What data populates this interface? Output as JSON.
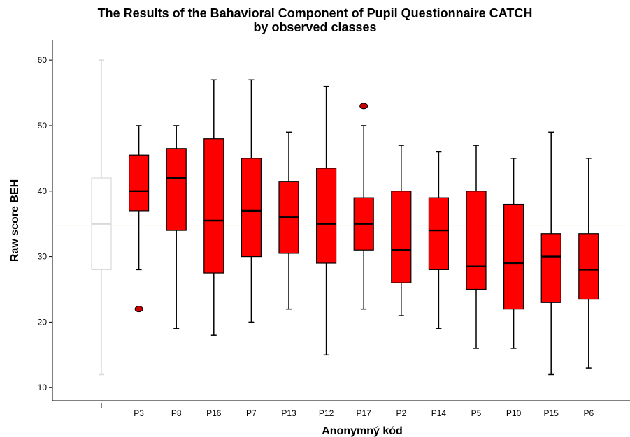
{
  "chart_data": {
    "type": "boxplot",
    "title": "The Results of the Bahavioral Component of Pupil Questionnaire CATCH",
    "subtitle": "by observed classes",
    "xlabel": "Anonymný kód",
    "ylabel": "Raw score BEH",
    "ylim": [
      8,
      63
    ],
    "yticks": [
      10,
      20,
      30,
      40,
      50,
      60
    ],
    "reference_line": 34.8,
    "grid": false,
    "overall_box": {
      "category": "",
      "min": 12,
      "q1": 28,
      "median": 35,
      "q3": 42,
      "max": 60,
      "color": "#d9d9d9"
    },
    "box_color": "#ff0000",
    "reference_color": "#f5dcb8",
    "categories": [
      "P3",
      "P8",
      "P16",
      "P7",
      "P13",
      "P12",
      "P17",
      "P2",
      "P14",
      "P5",
      "P10",
      "P15",
      "P6"
    ],
    "boxes": [
      {
        "min": 28,
        "q1": 37,
        "median": 40,
        "q3": 45.5,
        "max": 50,
        "outliers": [
          22
        ]
      },
      {
        "min": 19,
        "q1": 34,
        "median": 42,
        "q3": 46.5,
        "max": 50,
        "outliers": []
      },
      {
        "min": 18,
        "q1": 27.5,
        "median": 35.5,
        "q3": 48,
        "max": 57,
        "outliers": []
      },
      {
        "min": 20,
        "q1": 30,
        "median": 37,
        "q3": 45,
        "max": 57,
        "outliers": []
      },
      {
        "min": 22,
        "q1": 30.5,
        "median": 36,
        "q3": 41.5,
        "max": 49,
        "outliers": []
      },
      {
        "min": 15,
        "q1": 29,
        "median": 35,
        "q3": 43.5,
        "max": 56,
        "outliers": []
      },
      {
        "min": 22,
        "q1": 31,
        "median": 35,
        "q3": 39,
        "max": 50,
        "outliers": [
          53
        ]
      },
      {
        "min": 21,
        "q1": 26,
        "median": 31,
        "q3": 40,
        "max": 47,
        "outliers": []
      },
      {
        "min": 19,
        "q1": 28,
        "median": 34,
        "q3": 39,
        "max": 46,
        "outliers": []
      },
      {
        "min": 16,
        "q1": 25,
        "median": 28.5,
        "q3": 40,
        "max": 47,
        "outliers": []
      },
      {
        "min": 16,
        "q1": 22,
        "median": 29,
        "q3": 38,
        "max": 45,
        "outliers": []
      },
      {
        "min": 12,
        "q1": 23,
        "median": 30,
        "q3": 33.5,
        "max": 49,
        "outliers": []
      },
      {
        "min": 13,
        "q1": 23.5,
        "median": 28,
        "q3": 33.5,
        "max": 45,
        "outliers": []
      }
    ]
  }
}
